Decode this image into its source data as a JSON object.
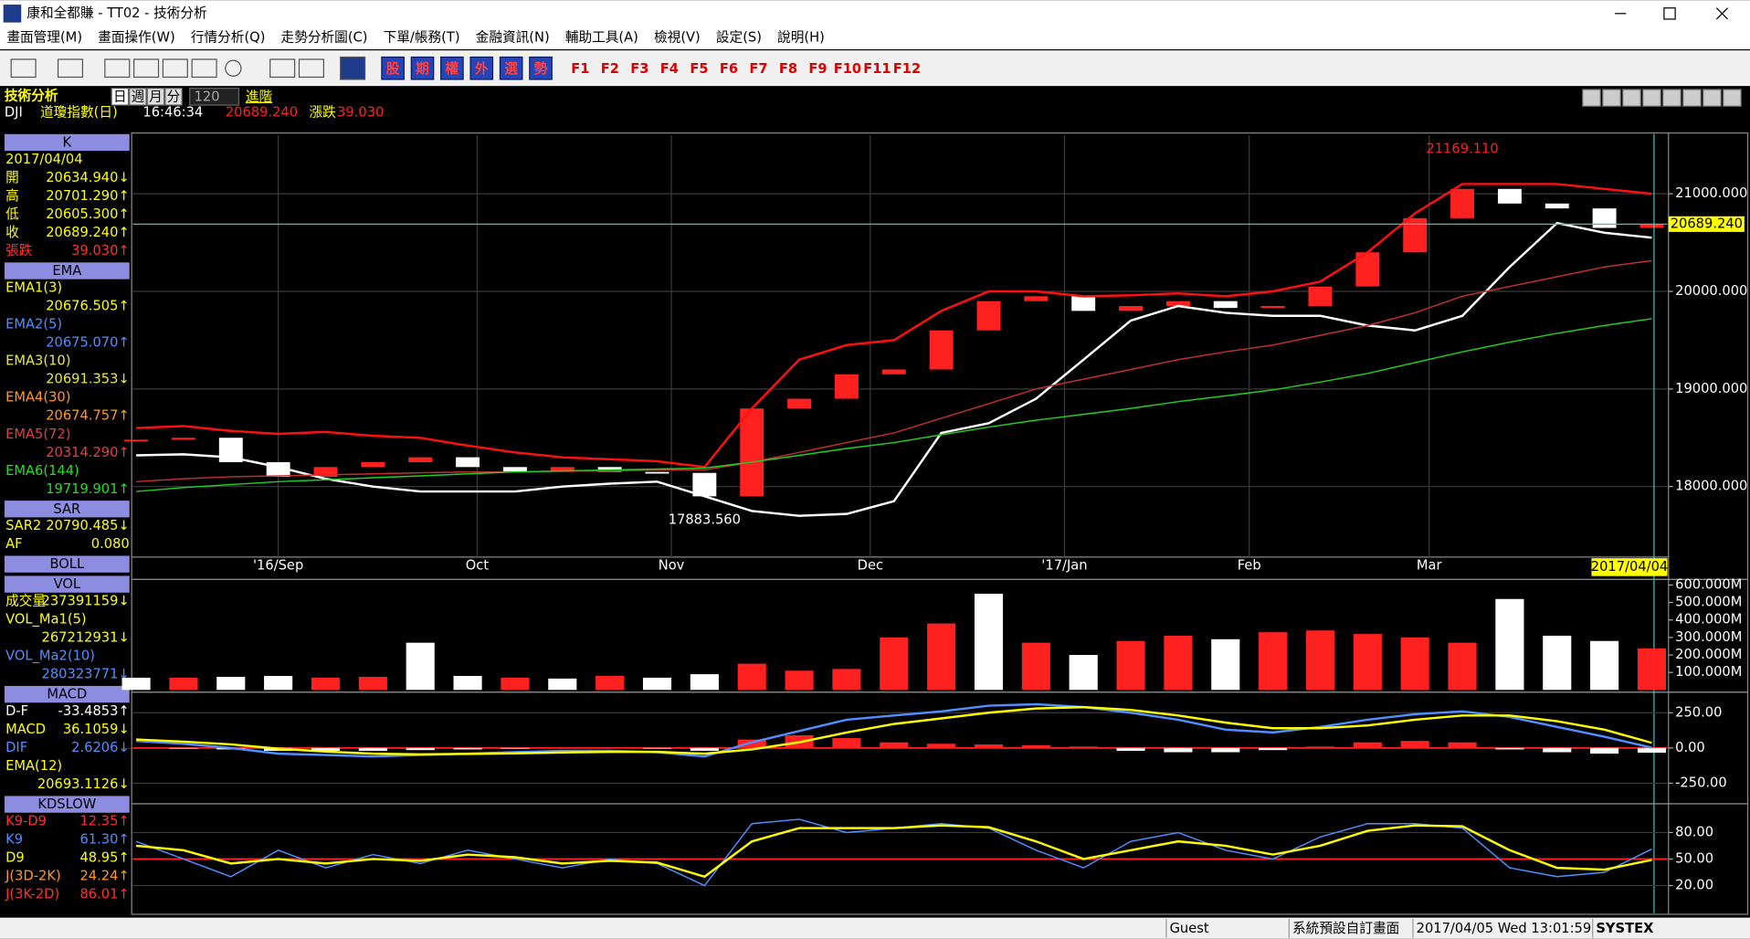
{
  "window": {
    "title": "康和全都賺 - TT02 - 技術分析"
  },
  "menu": [
    "畫面管理(M)",
    "畫面操作(W)",
    "行情分析(Q)",
    "走勢分析圖(C)",
    "下單/帳務(T)",
    "金融資訊(N)",
    "輔助工具(A)",
    "檢視(V)",
    "設定(S)",
    "說明(H)"
  ],
  "toolbar": {
    "buttons": [
      "股",
      "期",
      "權",
      "外",
      "選",
      "勢"
    ],
    "function_keys": [
      "F1",
      "F2",
      "F3",
      "F4",
      "F5",
      "F6",
      "F7",
      "F8",
      "F9",
      "F10",
      "F11",
      "F12"
    ]
  },
  "header": {
    "panel_title": "技術分析",
    "periods": [
      "日",
      "週",
      "月",
      "分"
    ],
    "count": "120",
    "advance": "進階",
    "symbol": "DJI",
    "name": "道瓊指數(日)",
    "time": "16:46:34",
    "price": "20689.240",
    "change_label": "漲跌",
    "change": "39.030"
  },
  "info_panel": [
    {
      "title": "K",
      "rows": [
        {
          "value": "2017/04/04",
          "color": "#ffff00"
        },
        {
          "label": "開",
          "value": "20634.940↓",
          "color": "#ffff00"
        },
        {
          "label": "高",
          "value": "20701.290↑",
          "color": "#ffff00"
        },
        {
          "label": "低",
          "value": "20605.300↑",
          "color": "#ffff00"
        },
        {
          "label": "收",
          "value": "20689.240↑",
          "color": "#ffff00"
        },
        {
          "label": "張跌",
          "value": "39.030↑",
          "color": "#ff3030"
        }
      ]
    },
    {
      "title": "EMA",
      "rows": [
        {
          "label": "EMA1(3)",
          "value": "20676.505↑",
          "color": "#ffff00"
        },
        {
          "label": "EMA2(5)",
          "value": "20675.070↑",
          "color": "#4f8fff"
        },
        {
          "label": "EMA3(10)",
          "value": "20691.353↓",
          "color": "#e8e840"
        },
        {
          "label": "EMA4(30)",
          "value": "20674.757↑",
          "color": "#ff9a20"
        },
        {
          "label": "EMA5(72)",
          "value": "20314.290↑",
          "color": "#e04040"
        },
        {
          "label": "EMA6(144)",
          "value": "19719.901↑",
          "color": "#20e020"
        }
      ]
    },
    {
      "title": "SAR",
      "rows": [
        {
          "label": "SAR2",
          "value": "20790.485↓",
          "color": "#ffff00"
        },
        {
          "label": "AF",
          "value": "0.080",
          "color": "#ffff00"
        }
      ]
    },
    {
      "title": "BOLL",
      "rows": []
    },
    {
      "title": "VOL",
      "rows": [
        {
          "label": "成交量",
          "value": "237391159↓",
          "color": "#ffff00"
        },
        {
          "label": "VOL_Ma1(5)",
          "value": "267212931↓",
          "color": "#ffff00"
        },
        {
          "label": "VOL_Ma2(10)",
          "value": "280323771↓",
          "color": "#4f8fff"
        }
      ]
    },
    {
      "title": "MACD",
      "rows": [
        {
          "label": "D-F",
          "value": "-33.4853↑",
          "color": "#ffffff"
        },
        {
          "label": "MACD",
          "value": "36.1059↓",
          "color": "#ffff00"
        },
        {
          "label": "DIF",
          "value": "2.6206↓",
          "color": "#4f8fff"
        },
        {
          "label": "EMA(12)",
          "value": "20693.1126↓",
          "color": "#ffff00"
        }
      ]
    },
    {
      "title": "KDSLOW",
      "rows": [
        {
          "label": "K9-D9",
          "value": "12.35↑",
          "color": "#ff3030"
        },
        {
          "label": "K9",
          "value": "61.30↑",
          "color": "#4f8fff"
        },
        {
          "label": "D9",
          "value": "48.95↑",
          "color": "#ffff00"
        },
        {
          "label": "J(3D-2K)",
          "value": "24.24↑",
          "color": "#ff9a20"
        },
        {
          "label": "J(3K-2D)",
          "value": "86.01↑",
          "color": "#ff3030"
        }
      ]
    }
  ],
  "chart_data": [
    {
      "type": "line",
      "x": [
        0,
        1,
        2,
        3,
        4,
        5,
        6,
        7,
        8,
        9,
        10,
        11,
        12,
        13,
        14,
        15,
        16,
        17,
        18,
        19,
        20,
        21,
        22,
        23,
        24,
        25,
        26,
        27,
        28,
        29,
        30,
        31,
        32
      ],
      "xlim": [
        0,
        32
      ],
      "ylim": [
        17300,
        21600
      ],
      "yticks": [
        {
          "value": 18000,
          "label": "18000.000"
        },
        {
          "value": 19000,
          "label": "19000.000"
        },
        {
          "value": 20000,
          "label": "20000.000"
        },
        {
          "value": 21000,
          "label": "21000.000"
        }
      ],
      "xticks": [
        {
          "value": 3,
          "label": "'16/Sep"
        },
        {
          "value": 7.2,
          "label": "Oct"
        },
        {
          "value": 11.3,
          "label": "Nov"
        },
        {
          "value": 15.5,
          "label": "Dec"
        },
        {
          "value": 19.6,
          "label": "'17/Jan"
        },
        {
          "value": 23.5,
          "label": "Feb"
        },
        {
          "value": 27.3,
          "label": "Mar"
        }
      ],
      "grid": true,
      "series": [
        {
          "type": "candle",
          "color": "#ff2020",
          "down_color": "#ffffff",
          "values": [
            18480,
            18500,
            18250,
            18100,
            18200,
            18250,
            18300,
            18200,
            18150,
            18200,
            18150,
            18140,
            17900,
            18800,
            18900,
            19150,
            19200,
            19600,
            19900,
            19950,
            19800,
            19850,
            19900,
            19830,
            19850,
            20050,
            20400,
            20750,
            21050,
            20900,
            20850,
            20650,
            20689.24
          ]
        },
        {
          "color": "#ff1010",
          "values": [
            18600,
            18620,
            18570,
            18540,
            18560,
            18520,
            18500,
            18420,
            18350,
            18300,
            18280,
            18260,
            18200,
            18800,
            19300,
            19450,
            19500,
            19800,
            20000,
            20000,
            19950,
            19960,
            19980,
            19950,
            20000,
            20100,
            20400,
            20800,
            21100,
            21100,
            21100,
            21050,
            21000
          ]
        },
        {
          "color": "#ffffff",
          "values": [
            18320,
            18330,
            18300,
            18200,
            18080,
            18000,
            17950,
            17950,
            17950,
            18000,
            18030,
            18050,
            17900,
            17750,
            17700,
            17720,
            17850,
            18550,
            18650,
            18900,
            19300,
            19700,
            19850,
            19780,
            19750,
            19750,
            19650,
            19600,
            19750,
            20250,
            20700,
            20600,
            20550
          ]
        },
        {
          "name": "EMA5(72)",
          "color": "#c03030",
          "values": [
            18050,
            18080,
            18100,
            18110,
            18120,
            18130,
            18140,
            18150,
            18150,
            18160,
            18160,
            18170,
            18170,
            18250,
            18350,
            18450,
            18550,
            18700,
            18850,
            19000,
            19100,
            19200,
            19300,
            19380,
            19450,
            19550,
            19650,
            19780,
            19950,
            20050,
            20150,
            20250,
            20314.29
          ]
        },
        {
          "name": "EMA6(144)",
          "color": "#20d020",
          "values": [
            17950,
            17990,
            18020,
            18050,
            18070,
            18090,
            18110,
            18130,
            18150,
            18160,
            18170,
            18180,
            18190,
            18250,
            18320,
            18390,
            18450,
            18530,
            18610,
            18680,
            18740,
            18800,
            18870,
            18930,
            18990,
            19070,
            19160,
            19270,
            19380,
            19480,
            19570,
            19650,
            19719.901
          ]
        }
      ],
      "annotations": [
        {
          "text": "21169.110",
          "x": 28,
          "y": 21169.11,
          "color": "#ff2020"
        },
        {
          "text": "17883.560",
          "x": 12,
          "y": 17883.56,
          "color": "#ffffff"
        }
      ],
      "current": {
        "value": 20689.24,
        "label": "20689.240"
      },
      "cursor_label": "2017/04/04"
    },
    {
      "type": "bar",
      "x": [
        0,
        1,
        2,
        3,
        4,
        5,
        6,
        7,
        8,
        9,
        10,
        11,
        12,
        13,
        14,
        15,
        16,
        17,
        18,
        19,
        20,
        21,
        22,
        23,
        24,
        25,
        26,
        27,
        28,
        29,
        30,
        31,
        32
      ],
      "xlim": [
        0,
        32
      ],
      "ylim": [
        0,
        619
      ],
      "yticks": [
        {
          "value": 100,
          "label": "100.000M"
        },
        {
          "value": 200,
          "label": "200.000M"
        },
        {
          "value": 300,
          "label": "300.000M"
        },
        {
          "value": 400,
          "label": "400.000M"
        },
        {
          "value": 500,
          "label": "500.000M"
        },
        {
          "value": 600,
          "label": "600.000M"
        }
      ],
      "series": [
        {
          "values": [
            70,
            70,
            75,
            80,
            70,
            75,
            270,
            80,
            70,
            65,
            80,
            70,
            90,
            150,
            110,
            120,
            300,
            380,
            550,
            270,
            200,
            280,
            310,
            290,
            330,
            340,
            320,
            300,
            270,
            520,
            310,
            280,
            237.391159
          ],
          "colors": [
            "#ffffff",
            "#ff2020",
            "#ffffff",
            "#ffffff",
            "#ff2020",
            "#ff2020",
            "#ffffff",
            "#ffffff",
            "#ff2020",
            "#ffffff",
            "#ff2020",
            "#ffffff",
            "#ffffff",
            "#ff2020",
            "#ff2020",
            "#ff2020",
            "#ff2020",
            "#ff2020",
            "#ffffff",
            "#ff2020",
            "#ffffff",
            "#ff2020",
            "#ff2020",
            "#ffffff",
            "#ff2020",
            "#ff2020",
            "#ff2020",
            "#ff2020",
            "#ff2020",
            "#ffffff",
            "#ffffff",
            "#ffffff",
            "#ff2020"
          ]
        }
      ]
    },
    {
      "type": "line",
      "x": [
        0,
        1,
        2,
        3,
        4,
        5,
        6,
        7,
        8,
        9,
        10,
        11,
        12,
        13,
        14,
        15,
        16,
        17,
        18,
        19,
        20,
        21,
        22,
        23,
        24,
        25,
        26,
        27,
        28,
        29,
        30,
        31,
        32
      ],
      "xlim": [
        0,
        32
      ],
      "ylim": [
        -380,
        380
      ],
      "yticks": [
        {
          "value": -250,
          "label": "-250.00"
        },
        {
          "value": 0,
          "label": "0.00"
        },
        {
          "value": 250,
          "label": "250.00"
        }
      ],
      "series": [
        {
          "name": "D-F",
          "type": "bar",
          "color": "#ff2020",
          "neg_color": "#ffffff",
          "values": [
            0,
            -5,
            -10,
            -20,
            -20,
            -20,
            -15,
            -10,
            -5,
            0,
            0,
            -5,
            -20,
            60,
            90,
            70,
            40,
            30,
            25,
            20,
            10,
            -20,
            -30,
            -30,
            -15,
            10,
            40,
            50,
            40,
            -10,
            -30,
            -40,
            -33.4853
          ]
        },
        {
          "name": "DIF",
          "color": "#4f8fff",
          "values": [
            50,
            30,
            0,
            -40,
            -50,
            -60,
            -50,
            -40,
            -30,
            -20,
            -20,
            -30,
            -60,
            40,
            120,
            200,
            230,
            260,
            300,
            310,
            290,
            250,
            200,
            130,
            110,
            150,
            200,
            240,
            260,
            220,
            150,
            80,
            2.6206
          ]
        },
        {
          "name": "MACD",
          "color": "#ffff00",
          "values": [
            60,
            45,
            25,
            -5,
            -25,
            -40,
            -45,
            -42,
            -38,
            -32,
            -28,
            -28,
            -40,
            -10,
            40,
            110,
            170,
            210,
            250,
            280,
            290,
            270,
            230,
            180,
            140,
            140,
            160,
            200,
            230,
            230,
            190,
            130,
            36.1059
          ]
        }
      ]
    },
    {
      "type": "line",
      "x": [
        0,
        1,
        2,
        3,
        4,
        5,
        6,
        7,
        8,
        9,
        10,
        11,
        12,
        13,
        14,
        15,
        16,
        17,
        18,
        19,
        20,
        21,
        22,
        23,
        24,
        25,
        26,
        27,
        28,
        29,
        30,
        31,
        32
      ],
      "xlim": [
        0,
        32
      ],
      "ylim": [
        -10,
        110
      ],
      "yticks": [
        {
          "value": 20,
          "label": "20.00"
        },
        {
          "value": 50,
          "label": "50.00"
        },
        {
          "value": 80,
          "label": "80.00"
        }
      ],
      "series": [
        {
          "name": "K9",
          "color": "#4f8fff",
          "values": [
            70,
            50,
            30,
            60,
            40,
            55,
            45,
            60,
            50,
            40,
            50,
            45,
            20,
            90,
            95,
            80,
            85,
            90,
            85,
            60,
            40,
            70,
            80,
            60,
            50,
            75,
            90,
            90,
            85,
            40,
            30,
            35,
            61.3
          ]
        },
        {
          "name": "D9",
          "color": "#ffff00",
          "values": [
            65,
            60,
            45,
            50,
            45,
            50,
            48,
            55,
            52,
            45,
            48,
            46,
            30,
            70,
            85,
            85,
            85,
            88,
            86,
            70,
            50,
            60,
            70,
            65,
            55,
            65,
            82,
            88,
            87,
            60,
            40,
            38,
            48.95
          ]
        }
      ]
    }
  ],
  "status": [
    "Guest",
    "系統預設自訂畫面",
    "2017/04/05 Wed 13:01:59",
    "SYSTEX"
  ]
}
